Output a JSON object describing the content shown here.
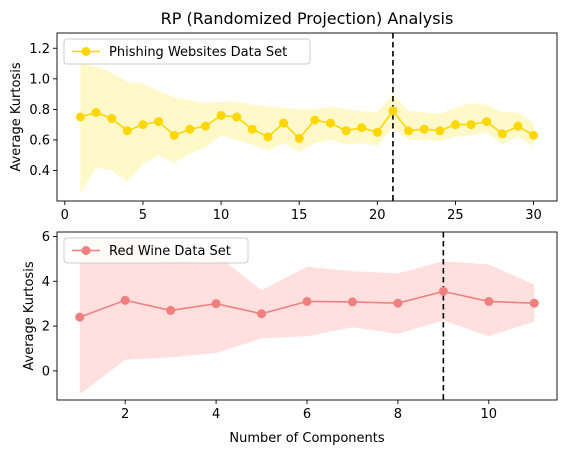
{
  "chart_data": [
    {
      "type": "line",
      "title": "RP (Randomized Projection) Analysis",
      "xlabel": "",
      "ylabel": "Average Kurtosis",
      "xlim": [
        -0.5,
        31.5
      ],
      "ylim": [
        0.2,
        1.3
      ],
      "xticks": [
        0,
        5,
        10,
        15,
        20,
        25,
        30
      ],
      "yticks": [
        0.4,
        0.6,
        0.8,
        1.0,
        1.2
      ],
      "ytick_labels": [
        "0.4",
        "0.6",
        "0.8",
        "1.0",
        "1.2"
      ],
      "legend_position": "top-left",
      "color": "#ffd700",
      "band_color": "#fff8c8",
      "vline": 21,
      "series": [
        {
          "name": "Phishing Websites Data Set",
          "x": [
            1,
            2,
            3,
            4,
            5,
            6,
            7,
            8,
            9,
            10,
            11,
            12,
            13,
            14,
            15,
            16,
            17,
            18,
            19,
            20,
            21,
            22,
            23,
            24,
            25,
            26,
            27,
            28,
            29,
            30
          ],
          "values": [
            0.75,
            0.78,
            0.74,
            0.66,
            0.7,
            0.72,
            0.63,
            0.67,
            0.69,
            0.76,
            0.75,
            0.67,
            0.62,
            0.71,
            0.61,
            0.73,
            0.71,
            0.66,
            0.68,
            0.65,
            0.79,
            0.66,
            0.67,
            0.66,
            0.7,
            0.7,
            0.72,
            0.64,
            0.69,
            0.63
          ],
          "upper": [
            1.1,
            1.08,
            1.04,
            0.98,
            0.97,
            0.92,
            0.88,
            0.86,
            0.84,
            0.85,
            0.85,
            0.83,
            0.82,
            0.81,
            0.8,
            0.8,
            0.82,
            0.8,
            0.79,
            0.78,
            0.9,
            0.79,
            0.78,
            0.77,
            0.81,
            0.84,
            0.83,
            0.78,
            0.78,
            0.71
          ],
          "lower": [
            0.25,
            0.42,
            0.4,
            0.33,
            0.44,
            0.5,
            0.45,
            0.51,
            0.55,
            0.63,
            0.6,
            0.57,
            0.53,
            0.58,
            0.52,
            0.58,
            0.6,
            0.57,
            0.58,
            0.56,
            0.68,
            0.6,
            0.6,
            0.59,
            0.62,
            0.63,
            0.65,
            0.57,
            0.62,
            0.56
          ]
        }
      ]
    },
    {
      "type": "line",
      "title": "",
      "xlabel": "Number of Components",
      "ylabel": "Average Kurtosis",
      "xlim": [
        0.5,
        11.5
      ],
      "ylim": [
        -1.3,
        6.2
      ],
      "xticks": [
        2,
        4,
        6,
        8,
        10
      ],
      "yticks": [
        0,
        2,
        4,
        6
      ],
      "ytick_labels": [
        "0",
        "2",
        "4",
        "6"
      ],
      "legend_position": "top-left",
      "color": "#f08080",
      "band_color": "#ffe0de",
      "vline": 9,
      "series": [
        {
          "name": "Red Wine Data Set",
          "x": [
            1,
            2,
            3,
            4,
            5,
            6,
            7,
            8,
            9,
            10,
            11
          ],
          "values": [
            2.4,
            3.15,
            2.7,
            3.0,
            2.55,
            3.1,
            3.08,
            3.02,
            3.55,
            3.1,
            3.02
          ],
          "upper": [
            5.85,
            5.85,
            5.0,
            5.2,
            3.6,
            4.65,
            4.45,
            4.35,
            4.9,
            4.75,
            3.85
          ],
          "lower": [
            -1.05,
            0.5,
            0.6,
            0.8,
            1.45,
            1.55,
            1.95,
            1.65,
            2.25,
            1.55,
            2.2
          ]
        }
      ]
    }
  ]
}
